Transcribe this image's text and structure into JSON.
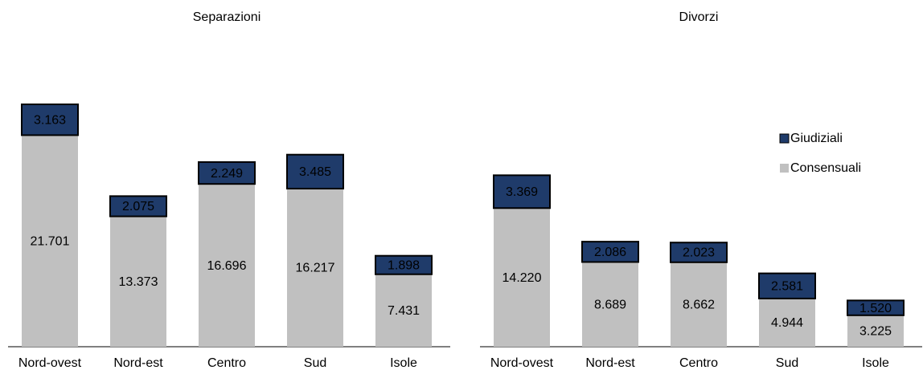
{
  "chart_data": [
    {
      "type": "stacked-bar",
      "title": "Separazioni",
      "categories": [
        "Nord-ovest",
        "Nord-est",
        "Centro",
        "Sud",
        "Isole"
      ],
      "series": [
        {
          "color": "#c0c0c0",
          "values": [
            21701,
            13373,
            16696,
            16217,
            7431
          ],
          "value_labels": [
            "21.701",
            "13.373",
            "16.696",
            "16.217",
            "7.431"
          ]
        },
        {
          "color": "#1f3b6a",
          "values": [
            3163,
            2075,
            2249,
            3485,
            1898
          ],
          "value_labels": [
            "3.163",
            "2.075",
            "2.249",
            "3.485",
            "1.898"
          ]
        }
      ]
    },
    {
      "type": "stacked-bar",
      "title": "Divorzi",
      "categories": [
        "Nord-ovest",
        "Nord-est",
        "Centro",
        "Sud",
        "Isole"
      ],
      "series": [
        {
          "name": "Consensuali",
          "color": "#c0c0c0",
          "values": [
            14220,
            8689,
            8662,
            4944,
            3225
          ],
          "value_labels": [
            "14.220",
            "8.689",
            "8.662",
            "4.944",
            "3.225"
          ]
        },
        {
          "name": "Giudiziali",
          "color": "#1f3b6a",
          "values": [
            3369,
            2086,
            2023,
            2581,
            1520
          ],
          "value_labels": [
            "3.369",
            "2.086",
            "2.023",
            "2.581",
            "1.520"
          ]
        }
      ],
      "legend": "right"
    }
  ]
}
